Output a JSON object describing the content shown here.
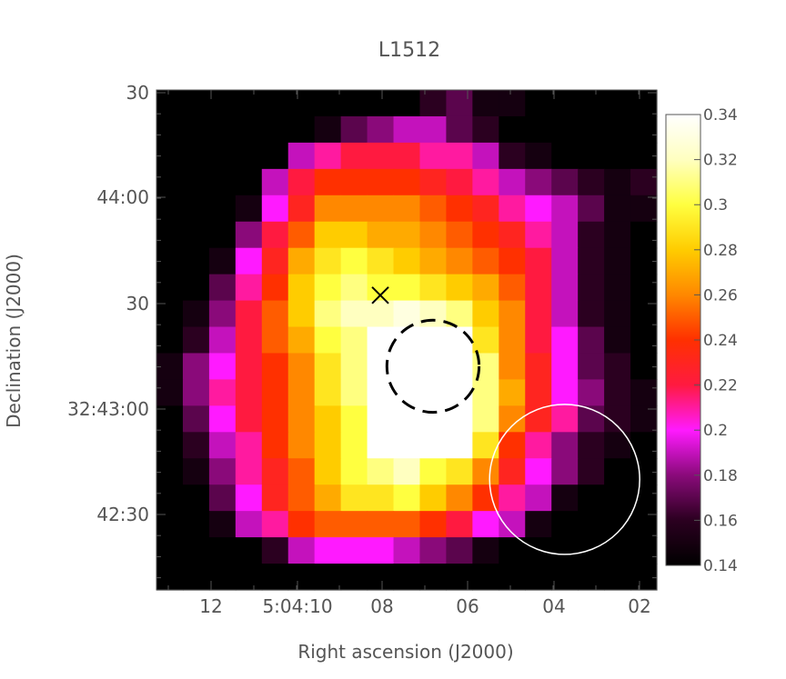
{
  "chart_data": {
    "type": "heatmap",
    "title": "L1512",
    "xlabel": "Right ascension (J2000)",
    "ylabel": "Declination (J2000)",
    "x_ticks": [
      "12",
      "5:04:10",
      "08",
      "06",
      "04",
      "02"
    ],
    "y_ticks": [
      "30",
      "44:00",
      "30",
      "32:43:00",
      "42:30"
    ],
    "colorbar": {
      "min": 0.14,
      "max": 0.34,
      "ticks": [
        "0.34",
        "0.32",
        "0.3",
        "0.28",
        "0.26",
        "0.24",
        "0.22",
        "0.2",
        "0.18",
        "0.16",
        "0.14"
      ]
    },
    "grid_cols": 19,
    "grid_rows": 19,
    "pixel_values": [
      [
        0.14,
        0.14,
        0.14,
        0.14,
        0.14,
        0.14,
        0.14,
        0.14,
        0.14,
        0.14,
        0.16,
        0.17,
        0.15,
        0.15,
        0.14,
        0.14,
        0.14,
        0.14,
        0.14
      ],
      [
        0.14,
        0.14,
        0.14,
        0.14,
        0.14,
        0.14,
        0.15,
        0.17,
        0.18,
        0.19,
        0.19,
        0.17,
        0.16,
        0.14,
        0.14,
        0.14,
        0.14,
        0.14,
        0.14
      ],
      [
        0.14,
        0.14,
        0.14,
        0.14,
        0.14,
        0.19,
        0.21,
        0.22,
        0.22,
        0.22,
        0.21,
        0.21,
        0.19,
        0.16,
        0.15,
        0.14,
        0.14,
        0.14,
        0.14
      ],
      [
        0.14,
        0.14,
        0.14,
        0.14,
        0.19,
        0.22,
        0.24,
        0.24,
        0.24,
        0.24,
        0.23,
        0.22,
        0.21,
        0.19,
        0.18,
        0.17,
        0.16,
        0.15,
        0.16
      ],
      [
        0.14,
        0.14,
        0.14,
        0.15,
        0.2,
        0.23,
        0.26,
        0.26,
        0.26,
        0.26,
        0.25,
        0.24,
        0.23,
        0.21,
        0.2,
        0.19,
        0.17,
        0.15,
        0.15
      ],
      [
        0.14,
        0.14,
        0.14,
        0.18,
        0.22,
        0.25,
        0.28,
        0.28,
        0.27,
        0.27,
        0.26,
        0.25,
        0.24,
        0.23,
        0.21,
        0.19,
        0.16,
        0.15,
        0.14
      ],
      [
        0.14,
        0.14,
        0.15,
        0.2,
        0.23,
        0.27,
        0.29,
        0.3,
        0.29,
        0.28,
        0.27,
        0.26,
        0.25,
        0.24,
        0.22,
        0.19,
        0.16,
        0.15,
        0.14
      ],
      [
        0.14,
        0.14,
        0.17,
        0.21,
        0.24,
        0.28,
        0.3,
        0.31,
        0.3,
        0.3,
        0.29,
        0.28,
        0.27,
        0.25,
        0.22,
        0.19,
        0.16,
        0.15,
        0.14
      ],
      [
        0.14,
        0.15,
        0.18,
        0.22,
        0.25,
        0.28,
        0.31,
        0.32,
        0.32,
        0.33,
        0.32,
        0.31,
        0.28,
        0.26,
        0.22,
        0.19,
        0.16,
        0.15,
        0.14
      ],
      [
        0.14,
        0.16,
        0.19,
        0.22,
        0.25,
        0.27,
        0.3,
        0.31,
        0.34,
        0.34,
        0.34,
        0.34,
        0.29,
        0.26,
        0.22,
        0.2,
        0.17,
        0.15,
        0.14
      ],
      [
        0.15,
        0.18,
        0.2,
        0.22,
        0.24,
        0.26,
        0.29,
        0.31,
        0.34,
        0.34,
        0.34,
        0.34,
        0.31,
        0.26,
        0.23,
        0.2,
        0.17,
        0.16,
        0.14
      ],
      [
        0.15,
        0.18,
        0.21,
        0.22,
        0.24,
        0.26,
        0.29,
        0.31,
        0.34,
        0.34,
        0.34,
        0.34,
        0.31,
        0.27,
        0.23,
        0.2,
        0.18,
        0.16,
        0.15
      ],
      [
        0.14,
        0.17,
        0.2,
        0.22,
        0.24,
        0.26,
        0.28,
        0.3,
        0.34,
        0.34,
        0.34,
        0.34,
        0.31,
        0.26,
        0.23,
        0.21,
        0.17,
        0.16,
        0.15
      ],
      [
        0.14,
        0.16,
        0.19,
        0.21,
        0.24,
        0.26,
        0.28,
        0.3,
        0.34,
        0.34,
        0.34,
        0.34,
        0.29,
        0.24,
        0.21,
        0.18,
        0.16,
        0.15,
        0.14
      ],
      [
        0.14,
        0.15,
        0.18,
        0.21,
        0.23,
        0.25,
        0.28,
        0.3,
        0.31,
        0.32,
        0.3,
        0.29,
        0.26,
        0.23,
        0.2,
        0.18,
        0.16,
        0.14,
        0.14
      ],
      [
        0.14,
        0.14,
        0.17,
        0.2,
        0.23,
        0.25,
        0.27,
        0.29,
        0.29,
        0.3,
        0.28,
        0.26,
        0.24,
        0.21,
        0.19,
        0.15,
        0.14,
        0.14,
        0.14
      ],
      [
        0.14,
        0.14,
        0.15,
        0.19,
        0.21,
        0.24,
        0.25,
        0.25,
        0.25,
        0.25,
        0.24,
        0.22,
        0.2,
        0.19,
        0.15,
        0.14,
        0.14,
        0.14,
        0.14
      ],
      [
        0.14,
        0.14,
        0.14,
        0.14,
        0.16,
        0.19,
        0.2,
        0.2,
        0.2,
        0.19,
        0.18,
        0.17,
        0.15,
        0.14,
        0.14,
        0.14,
        0.14,
        0.14,
        0.14
      ],
      [
        0.14,
        0.14,
        0.14,
        0.14,
        0.14,
        0.14,
        0.14,
        0.14,
        0.14,
        0.14,
        0.14,
        0.14,
        0.14,
        0.14,
        0.14,
        0.14,
        0.14,
        0.14,
        0.14
      ]
    ],
    "markers": [
      {
        "type": "cross",
        "col": 8.5,
        "row": 7.8,
        "color": "#000000"
      },
      {
        "type": "dashed-circle",
        "col": 10.5,
        "row": 10.5,
        "radius_cells": 1.75,
        "color": "#000000"
      },
      {
        "type": "circle",
        "col": 15.5,
        "row": 14.8,
        "radius_cells": 2.85,
        "color": "#ffffff"
      }
    ],
    "colormap_stops": [
      "#000000",
      "#2b0020",
      "#8a0a7a",
      "#ff1aff",
      "#ff1a40",
      "#ff3000",
      "#ff8800",
      "#ffcc00",
      "#ffff40",
      "#ffffc0",
      "#ffffff"
    ],
    "grid": false,
    "legend": "colorbar-right"
  }
}
